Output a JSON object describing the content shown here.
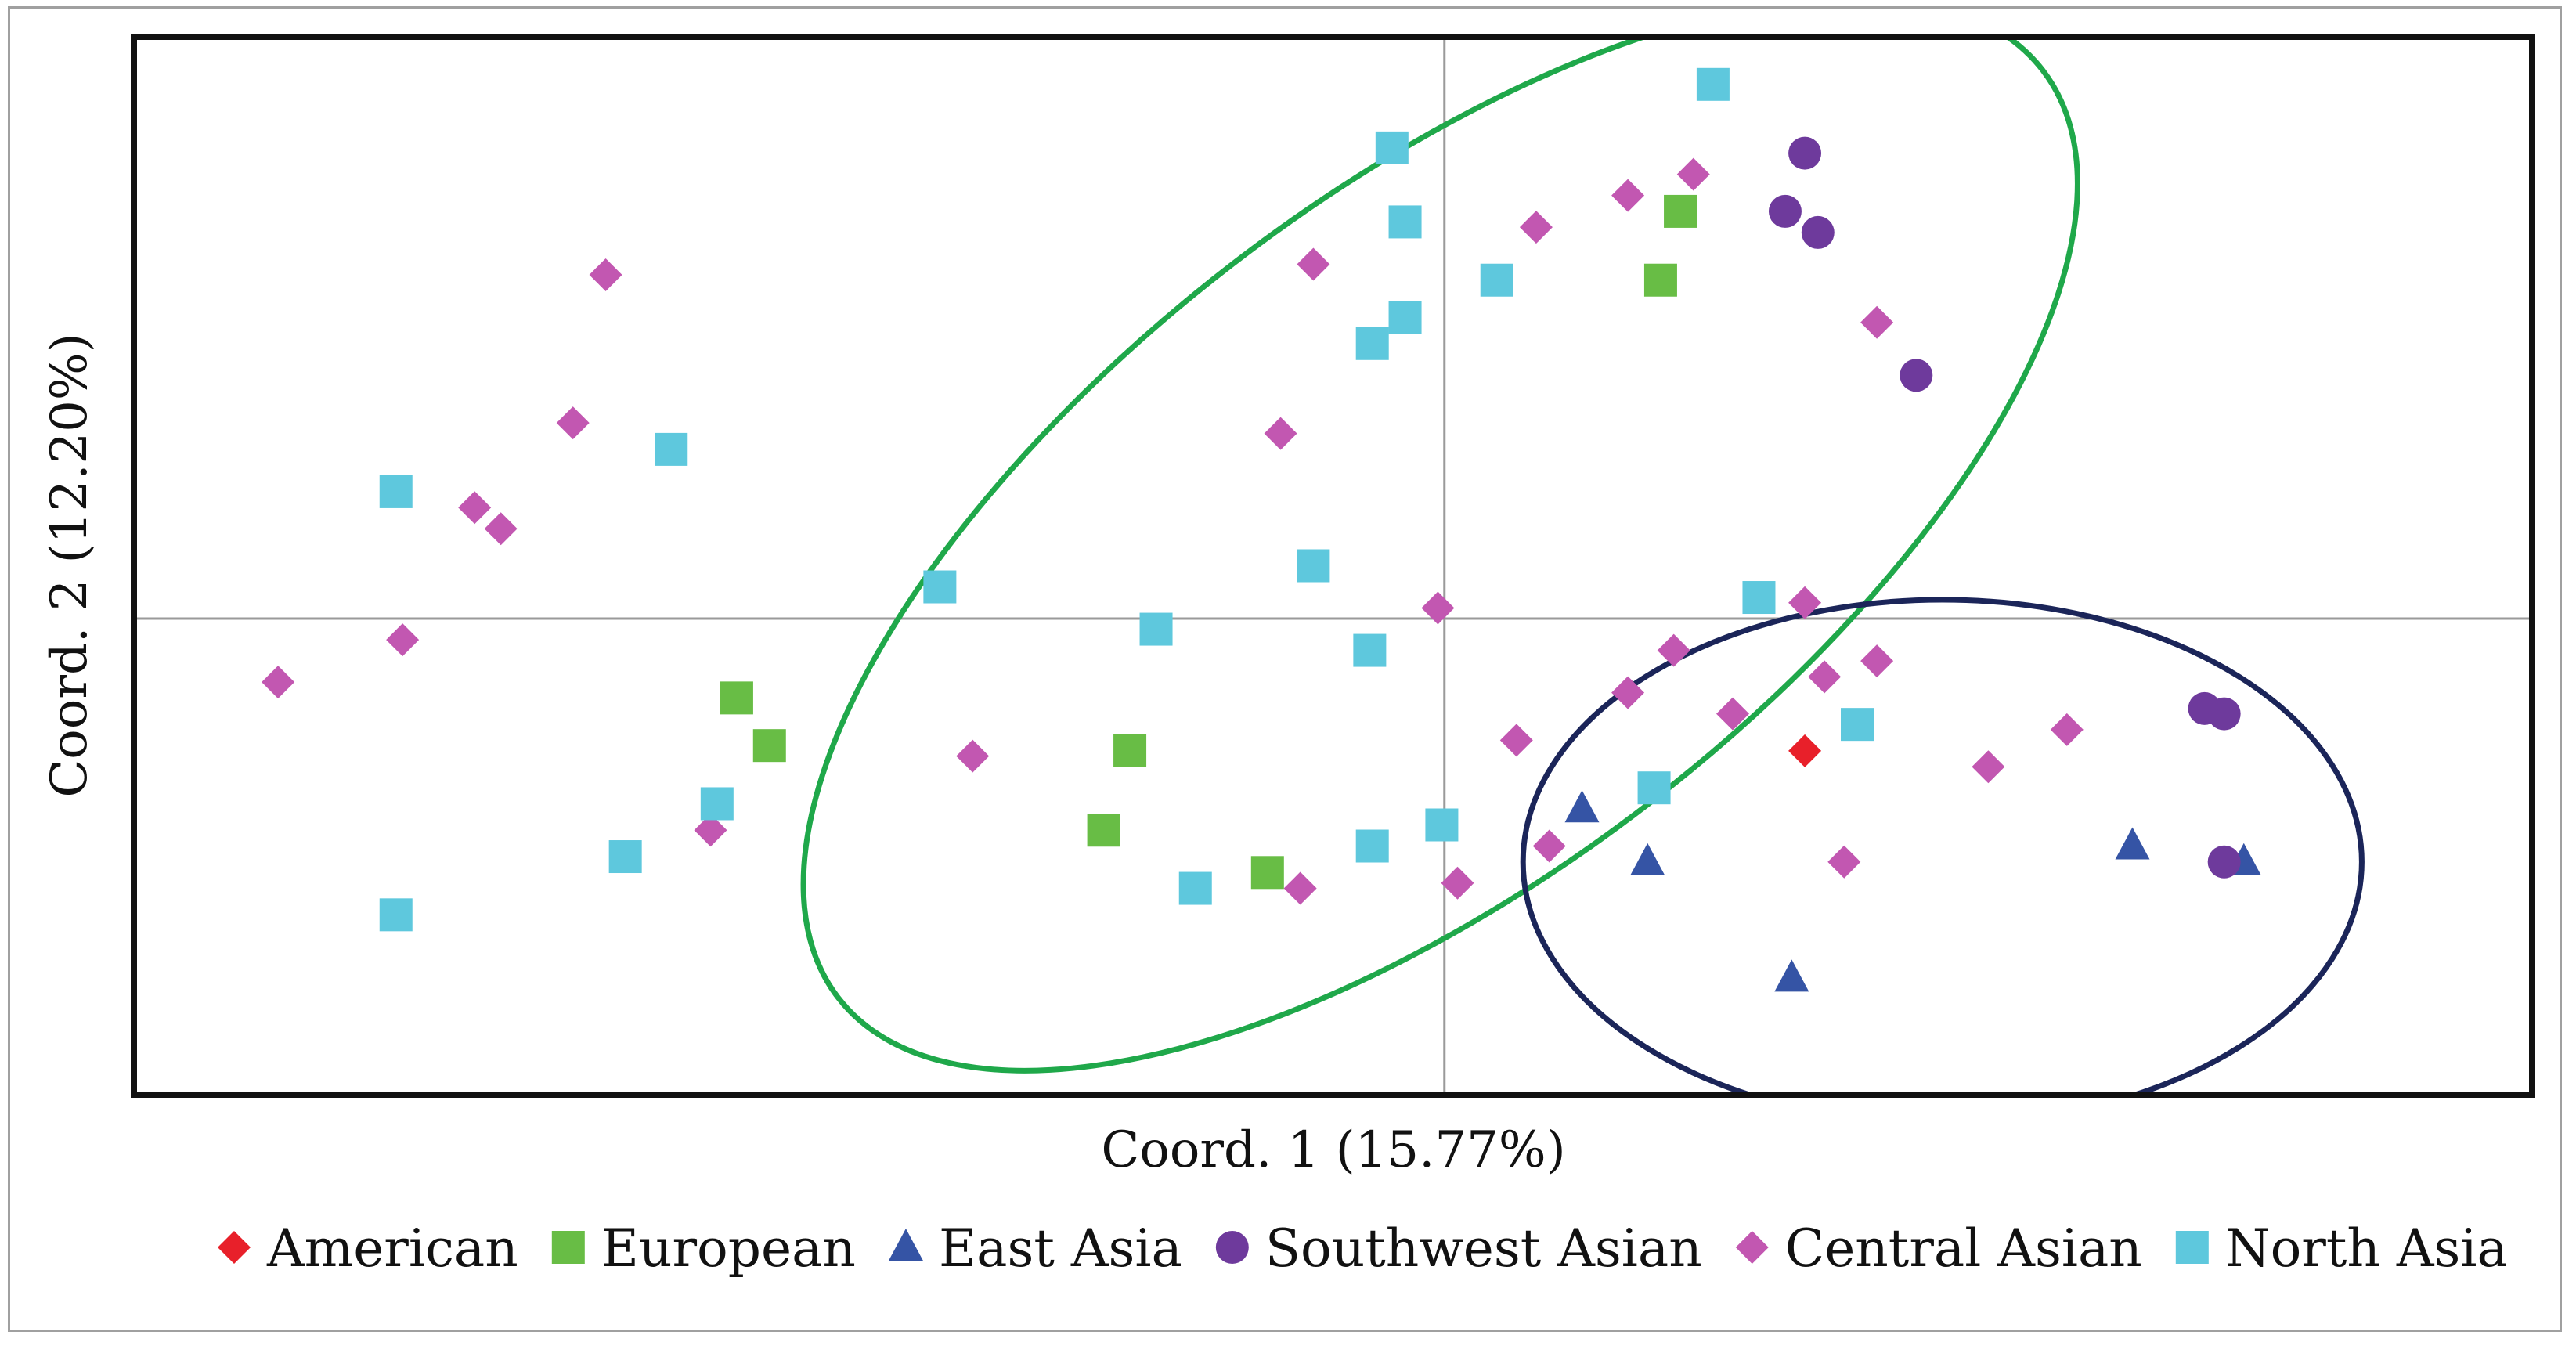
{
  "chart_data": {
    "type": "scatter",
    "title": "",
    "xlabel": "Coord. 1 (15.77%)",
    "ylabel": "Coord. 2 (12.20%)",
    "xlim": [
      -1.0,
      0.83
    ],
    "ylim": [
      -0.45,
      0.55
    ],
    "grid": false,
    "zero_lines": true,
    "legend_position": "bottom",
    "series": [
      {
        "name": "American",
        "marker": "diamond",
        "color": "#e8202a",
        "points": [
          [
            0.275,
            -0.125
          ]
        ]
      },
      {
        "name": "European",
        "marker": "square",
        "color": "#68bd45",
        "points": [
          [
            0.18,
            0.385
          ],
          [
            0.165,
            0.32
          ],
          [
            -0.54,
            -0.075
          ],
          [
            -0.515,
            -0.12
          ],
          [
            -0.24,
            -0.125
          ],
          [
            -0.26,
            -0.2
          ],
          [
            -0.135,
            -0.24
          ]
        ]
      },
      {
        "name": "East Asia",
        "marker": "triangle",
        "color": "#3554a5",
        "points": [
          [
            0.105,
            -0.18
          ],
          [
            0.155,
            -0.23
          ],
          [
            0.265,
            -0.34
          ],
          [
            0.525,
            -0.215
          ],
          [
            0.61,
            -0.23
          ]
        ]
      },
      {
        "name": "Southwest Asian",
        "marker": "circle",
        "color": "#6e3a9c",
        "points": [
          [
            0.275,
            0.44
          ],
          [
            0.26,
            0.385
          ],
          [
            0.285,
            0.365
          ],
          [
            0.36,
            0.23
          ],
          [
            0.58,
            -0.085
          ],
          [
            0.595,
            -0.09
          ],
          [
            0.595,
            -0.23
          ]
        ]
      },
      {
        "name": "Central Asian",
        "marker": "diamond",
        "color": "#c257b1",
        "points": [
          [
            -0.64,
            0.325
          ],
          [
            -0.665,
            0.185
          ],
          [
            -0.74,
            0.105
          ],
          [
            -0.72,
            0.085
          ],
          [
            -0.795,
            -0.02
          ],
          [
            -0.89,
            -0.06
          ],
          [
            -0.36,
            -0.13
          ],
          [
            -0.56,
            -0.2
          ],
          [
            -0.1,
            0.335
          ],
          [
            -0.125,
            0.175
          ],
          [
            -0.11,
            -0.255
          ],
          [
            0.07,
            0.37
          ],
          [
            0.14,
            0.4
          ],
          [
            0.19,
            0.42
          ],
          [
            0.33,
            0.28
          ],
          [
            -0.005,
            0.01
          ],
          [
            0.275,
            0.015
          ],
          [
            0.175,
            -0.03
          ],
          [
            0.14,
            -0.07
          ],
          [
            0.22,
            -0.09
          ],
          [
            0.29,
            -0.055
          ],
          [
            0.33,
            -0.04
          ],
          [
            0.055,
            -0.115
          ],
          [
            0.415,
            -0.14
          ],
          [
            0.475,
            -0.105
          ],
          [
            0.08,
            -0.215
          ],
          [
            0.305,
            -0.23
          ],
          [
            0.01,
            -0.25
          ]
        ]
      },
      {
        "name": "North Asia",
        "marker": "square",
        "color": "#5ec8dd",
        "points": [
          [
            0.205,
            0.505
          ],
          [
            -0.04,
            0.445
          ],
          [
            -0.03,
            0.375
          ],
          [
            0.04,
            0.32
          ],
          [
            -0.03,
            0.285
          ],
          [
            -0.055,
            0.26
          ],
          [
            -0.59,
            0.16
          ],
          [
            -0.8,
            0.12
          ],
          [
            -0.385,
            0.03
          ],
          [
            -0.1,
            0.05
          ],
          [
            -0.22,
            -0.01
          ],
          [
            -0.057,
            -0.03
          ],
          [
            0.24,
            0.02
          ],
          [
            0.315,
            -0.1
          ],
          [
            0.16,
            -0.16
          ],
          [
            -0.555,
            -0.175
          ],
          [
            -0.625,
            -0.225
          ],
          [
            -0.8,
            -0.28
          ],
          [
            -0.19,
            -0.255
          ],
          [
            -0.055,
            -0.215
          ],
          [
            -0.002,
            -0.195
          ]
        ]
      }
    ],
    "ellipses": [
      {
        "color": "#1fa84a",
        "center": [
          -0.003,
          0.08
        ],
        "semi_axes": [
          0.58,
          0.26
        ],
        "rotation_deg": 37.6
      },
      {
        "color": "#1b2559",
        "center": [
          0.38,
          -0.23
        ],
        "semi_axes": [
          0.32,
          0.2
        ],
        "rotation_deg": 0
      }
    ]
  }
}
